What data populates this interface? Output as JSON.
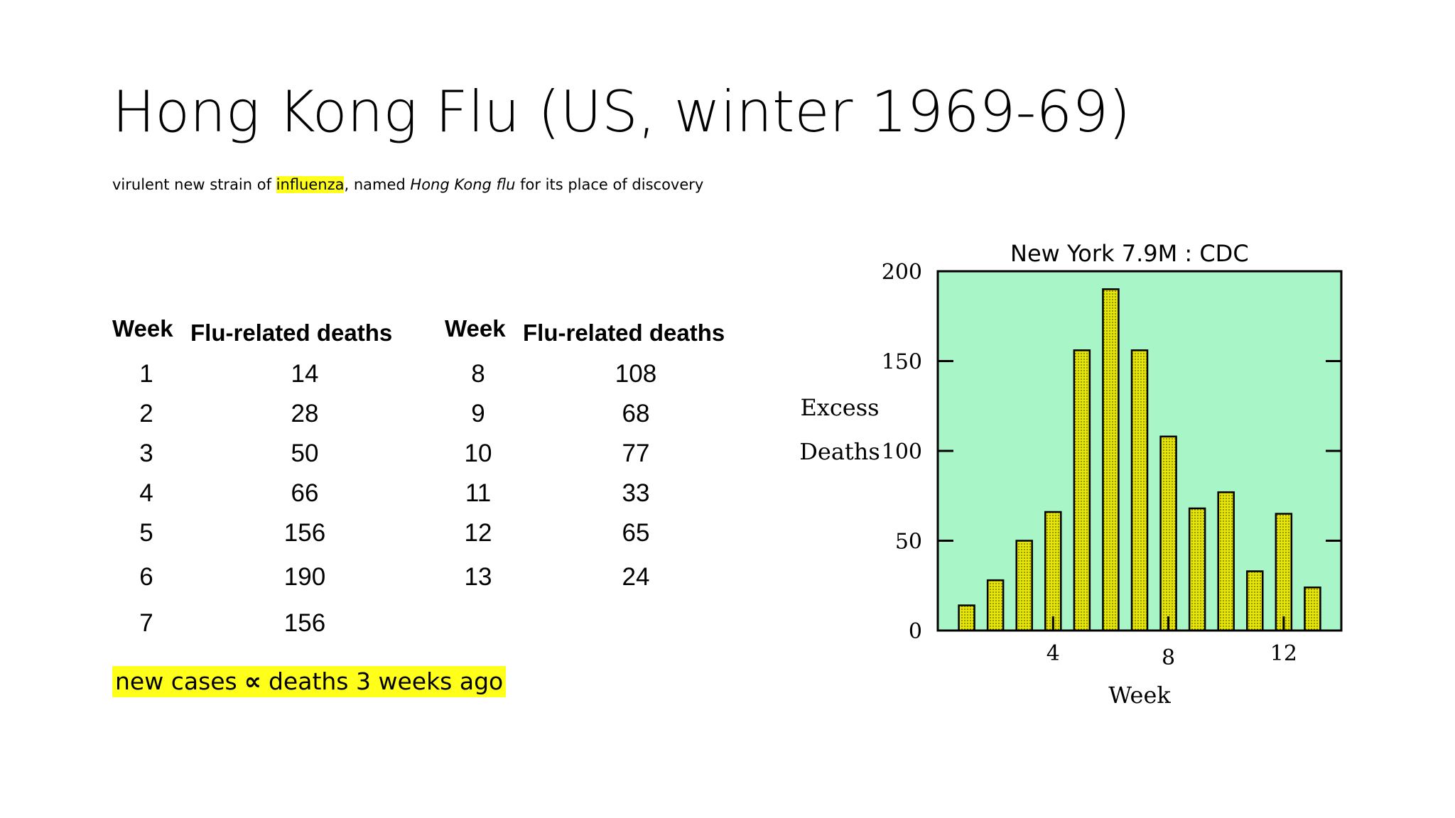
{
  "title": "Hong Kong Flu (US, winter 1969-69)",
  "subtitle": {
    "part1": "virulent new strain of ",
    "highlight": "influenza",
    "part2": ", named ",
    "italic": "Hong Kong flu",
    "part3": " for its place of discovery"
  },
  "table": {
    "headers": [
      "Week",
      "Flu-related deaths",
      "Week",
      "Flu-related deaths"
    ],
    "left_rows": [
      [
        "1",
        "14"
      ],
      [
        "2",
        "28"
      ],
      [
        "3",
        "50"
      ],
      [
        "4",
        "66"
      ],
      [
        "5",
        "156"
      ],
      [
        "6",
        "190"
      ],
      [
        "7",
        "156"
      ]
    ],
    "right_rows": [
      [
        "8",
        "108"
      ],
      [
        "9",
        "68"
      ],
      [
        "10",
        "77"
      ],
      [
        "11",
        "33"
      ],
      [
        "12",
        "65"
      ],
      [
        "13",
        "24"
      ]
    ]
  },
  "rule": {
    "left": "new cases",
    "symbol": "∝",
    "right": "deaths 3 weeks ago"
  },
  "colors": {
    "highlight": "#ffff1a",
    "plot_background": "#a8f5c8",
    "bar_fill": "#e6e600"
  },
  "chart_data": {
    "type": "bar",
    "title": "New York 7.9M : CDC",
    "xlabel": "Week",
    "ylabel": "Excess Deaths",
    "x": [
      1,
      2,
      3,
      4,
      5,
      6,
      7,
      8,
      9,
      10,
      11,
      12,
      13
    ],
    "values": [
      14,
      28,
      50,
      66,
      156,
      190,
      156,
      108,
      68,
      77,
      33,
      65,
      24
    ],
    "ylim": [
      0,
      200
    ],
    "xlim": [
      0,
      14
    ],
    "yticks": [
      0,
      50,
      100,
      150,
      200
    ],
    "xticks": [
      4,
      8,
      12
    ],
    "grid": false
  }
}
